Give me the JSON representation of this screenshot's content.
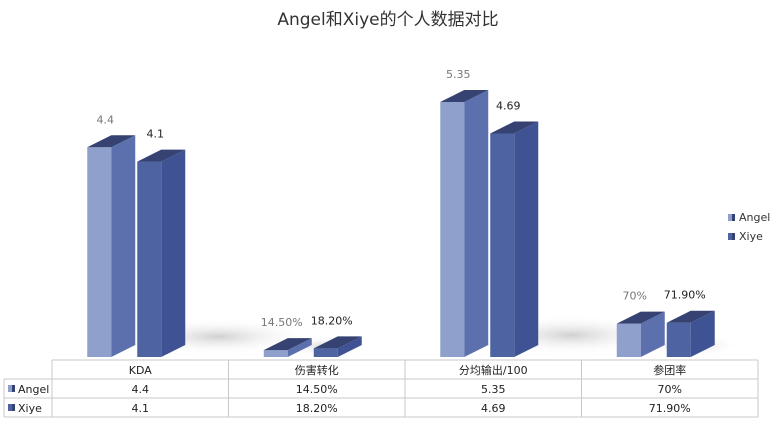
{
  "chart_data": {
    "type": "bar",
    "title": "Angel和Xiye的个人数据对比",
    "categories": [
      "KDA",
      "伤害转化",
      "分均输出/100",
      "参团率"
    ],
    "series": [
      {
        "name": "Angel",
        "values": [
          4.4,
          0.145,
          5.35,
          0.7
        ],
        "labels": [
          "4.4",
          "14.50%",
          "5.35",
          "70%"
        ],
        "color": "#8fa0cc"
      },
      {
        "name": "Xiye",
        "values": [
          4.1,
          0.182,
          4.69,
          0.719
        ],
        "labels": [
          "4.1",
          "18.20%",
          "4.69",
          "71.90%"
        ],
        "color": "#4d63a2"
      }
    ],
    "ylim": [
      0,
      6
    ],
    "grid": false,
    "legend": "right",
    "data_table": true
  }
}
